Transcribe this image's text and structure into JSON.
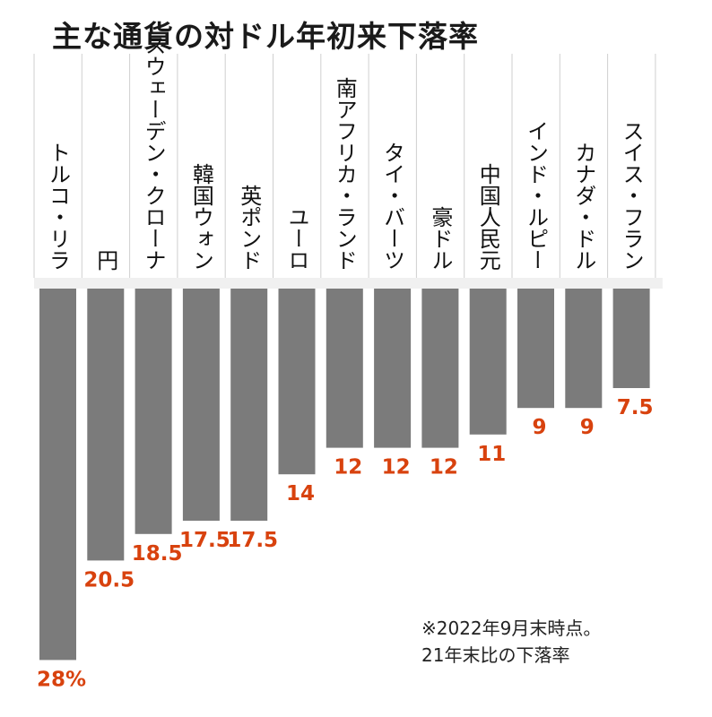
{
  "title": "主な通貨の対ドル年初来下落率",
  "note": {
    "line1": "※2022年9月末時点。",
    "line2": "21年末比の下落率"
  },
  "colors": {
    "bar": "#7b7b7b",
    "value_label": "#d8420e",
    "header_stripe": "#f0f0f0",
    "divider": "#cfcfcf"
  },
  "chart_data": {
    "type": "bar",
    "orientation": "vertical-down",
    "title": "主な通貨の対ドル年初来下落率",
    "categories": [
      "トルコ・リラ",
      "円",
      "スウェーデン・クローナ",
      "韓国ウォン",
      "英ポンド",
      "ユーロ",
      "南アフリカ・ランド",
      "タイ・バーツ",
      "豪ドル",
      "中国人民元",
      "インド・ルピー",
      "カナダ・ドル",
      "スイス・フラン"
    ],
    "values": [
      28,
      20.5,
      18.5,
      17.5,
      17.5,
      14,
      12,
      12,
      12,
      11,
      9,
      9,
      7.5
    ],
    "value_labels": [
      "28%",
      "20.5",
      "18.5",
      "17.5",
      "17.5",
      "14",
      "12",
      "12",
      "12",
      "11",
      "9",
      "9",
      "7.5"
    ],
    "unit": "%",
    "ylim": [
      0,
      28
    ],
    "grid": false,
    "legend": "none"
  }
}
